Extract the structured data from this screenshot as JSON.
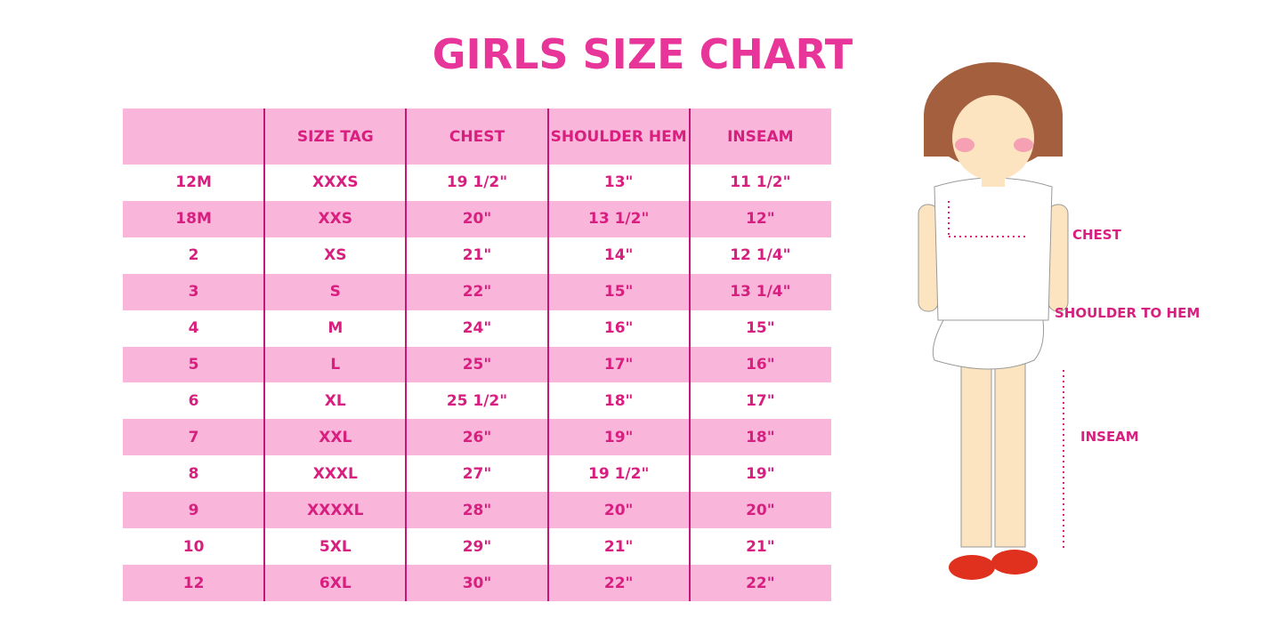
{
  "title": "GIRLS SIZE CHART",
  "table": {
    "headers": [
      "SIZE TAG",
      "CHEST",
      "SHOULDER HEM",
      "INSEAM"
    ],
    "rows": [
      [
        "12M",
        "XXXS",
        "19 1/2\"",
        "13\"",
        "11 1/2\""
      ],
      [
        "18M",
        "XXS",
        "20\"",
        "13 1/2\"",
        "12\""
      ],
      [
        "2",
        "XS",
        "21\"",
        "14\"",
        "12 1/4\""
      ],
      [
        "3",
        "S",
        "22\"",
        "15\"",
        "13 1/4\""
      ],
      [
        "4",
        "M",
        "24\"",
        "16\"",
        "15\""
      ],
      [
        "5",
        "L",
        "25\"",
        "17\"",
        "16\""
      ],
      [
        "6",
        "XL",
        "25 1/2\"",
        "18\"",
        "17\""
      ],
      [
        "7",
        "XXL",
        "26\"",
        "19\"",
        "18\""
      ],
      [
        "8",
        "XXXL",
        "27\"",
        "19 1/2\"",
        "19\""
      ],
      [
        "9",
        "XXXXL",
        "28\"",
        "20\"",
        "20\""
      ],
      [
        "10",
        "5XL",
        "29\"",
        "21\"",
        "21\""
      ],
      [
        "12",
        "6XL",
        "30\"",
        "22\"",
        "22\""
      ]
    ]
  },
  "figure": {
    "labels": [
      "CHEST",
      "SHOULDER TO HEM",
      "INSEAM"
    ]
  }
}
